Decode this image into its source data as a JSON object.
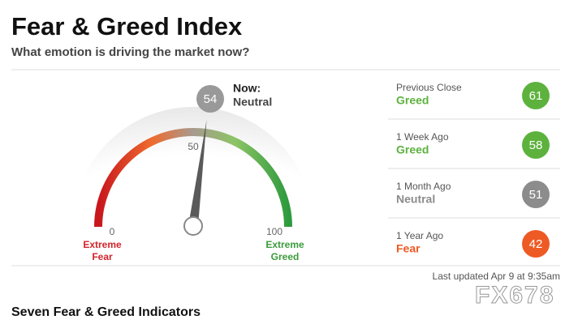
{
  "chart_data": {
    "type": "gauge",
    "title": "Fear & Greed Index",
    "subtitle": "What emotion is driving the market now?",
    "value": 54,
    "now_label": "Now:",
    "rating": "Neutral",
    "xlim": [
      0,
      100
    ],
    "xticks": [
      0,
      50,
      100
    ],
    "low_label": [
      "Extreme",
      "Fear"
    ],
    "high_label": [
      "Extreme",
      "Greed"
    ],
    "low_color": "#d1242a",
    "high_color": "#3a9b3a",
    "needle_color": "#5a5a5a"
  },
  "history": [
    {
      "label": "Previous Close",
      "rating": "Greed",
      "value": 61,
      "color": "#5db23e"
    },
    {
      "label": "1 Week Ago",
      "rating": "Greed",
      "value": 58,
      "color": "#5db23e"
    },
    {
      "label": "1 Month Ago",
      "rating": "Neutral",
      "value": 51,
      "color": "#8c8c8c"
    },
    {
      "label": "1 Year Ago",
      "rating": "Fear",
      "value": 42,
      "color": "#ee5a24"
    }
  ],
  "updated": "Last updated Apr 9 at 9:35am",
  "section_heading": "Seven Fear & Greed Indicators",
  "watermark": "FX678"
}
